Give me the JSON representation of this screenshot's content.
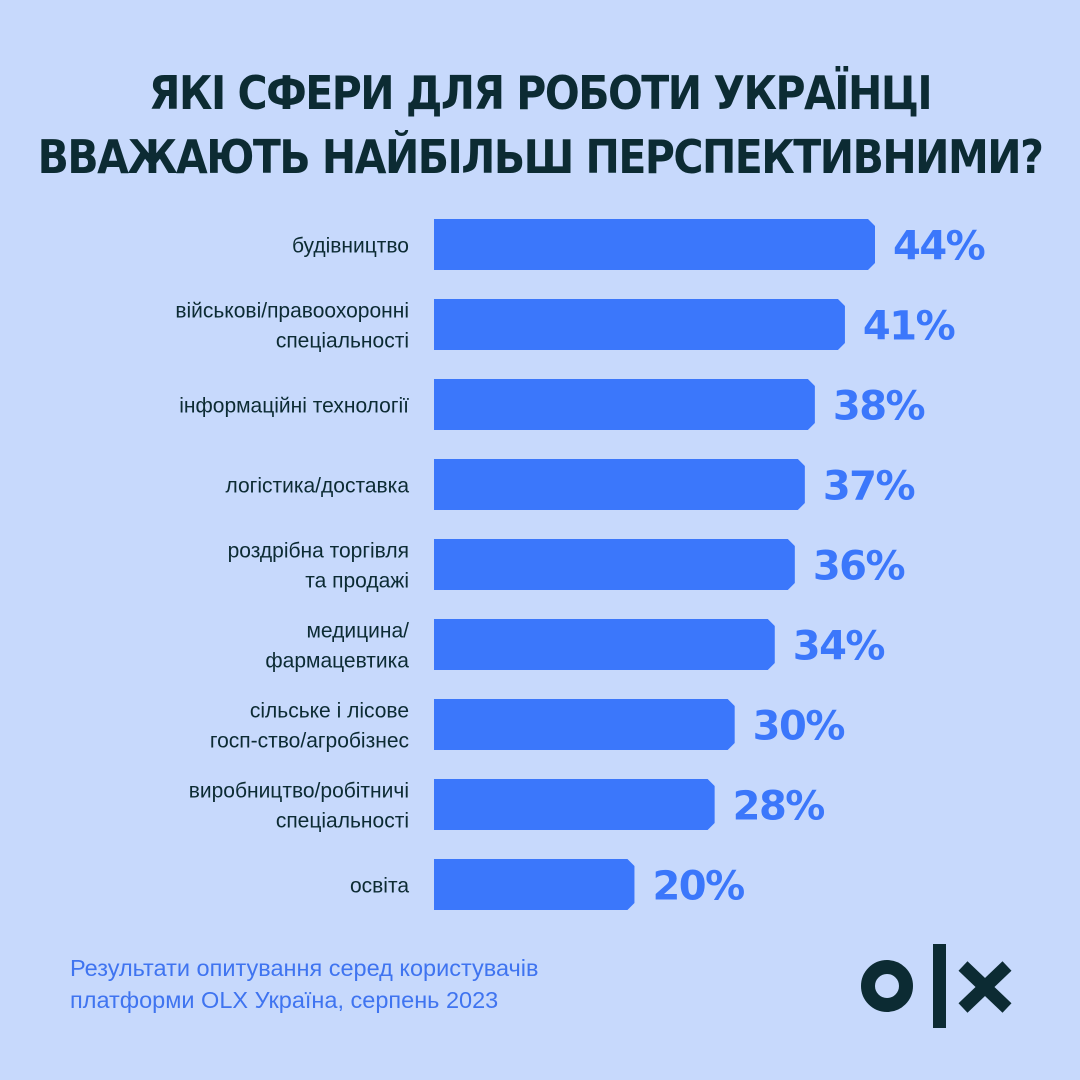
{
  "title": {
    "line1": "ЯКІ СФЕРИ ДЛЯ РОБОТИ УКРАЇНЦІ",
    "line2": "ВВАЖАЮТЬ НАЙБІЛЬШ ПЕРСПЕКТИВНИМИ?"
  },
  "chart_data": {
    "type": "bar",
    "orientation": "horizontal",
    "title": "ЯКІ СФЕРИ ДЛЯ РОБОТИ УКРАЇНЦІ ВВАЖАЮТЬ НАЙБІЛЬШ ПЕРСПЕКТИВНИМИ?",
    "categories": [
      [
        "будівництво"
      ],
      [
        "військові/правоохоронні",
        "спеціальності"
      ],
      [
        "інформаційні технології"
      ],
      [
        "логістика/доставка"
      ],
      [
        "роздрібна торгівля",
        "та продажі"
      ],
      [
        "медицина/",
        "фармацевтика"
      ],
      [
        "сільське і лісове",
        "госп-ство/агробізнес"
      ],
      [
        "виробництво/робітничі",
        "спеціальності"
      ],
      [
        "освіта"
      ]
    ],
    "values": [
      44,
      41,
      38,
      37,
      36,
      34,
      30,
      28,
      20
    ],
    "value_labels": [
      "44%",
      "41%",
      "38%",
      "37%",
      "36%",
      "34%",
      "30%",
      "28%",
      "20%"
    ],
    "unit": "%",
    "xlim": [
      0,
      44
    ],
    "grid": false,
    "legend": "none"
  },
  "colors": {
    "background": "#c7d9fc",
    "bar": "#3b77fb",
    "value_text": "#3b77fb",
    "title_text": "#0c2b33",
    "footnote_text": "#3f74f0",
    "logo": "#0c2b33"
  },
  "footnote": {
    "line1": "Результати опитування серед користувачів",
    "line2": "платформи OLX Україна, серпень 2023"
  },
  "logo": {
    "name": "olx-logo"
  }
}
